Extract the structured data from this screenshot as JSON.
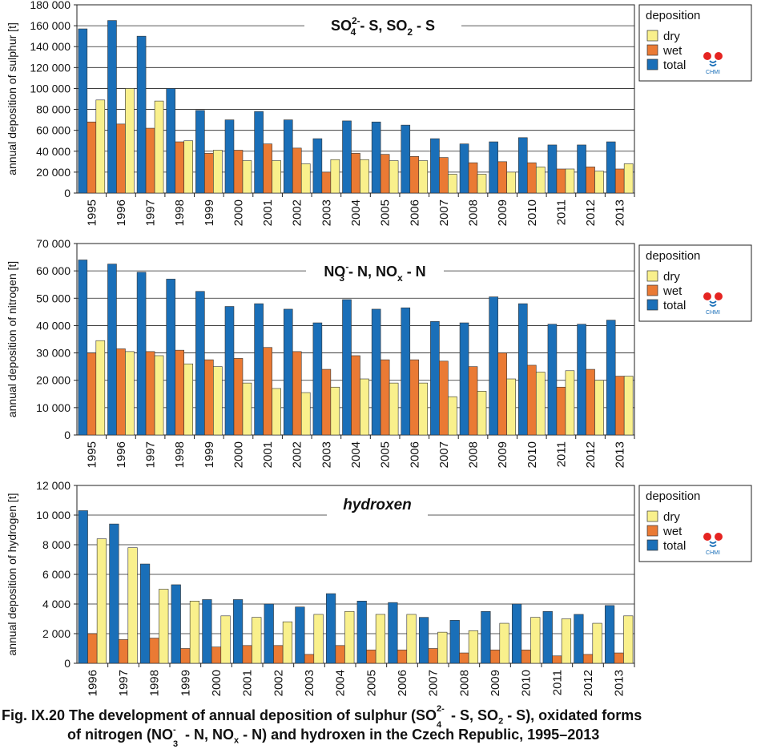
{
  "chart_data": [
    {
      "type": "bar",
      "title_main": "SO",
      "title_parts": [
        "SO",
        "4",
        "2-",
        " - S, SO",
        "2",
        " - S"
      ],
      "ylabel": "annual deposition of sulphur [t]",
      "ylim": [
        0,
        180000
      ],
      "yticks": [
        0,
        20000,
        40000,
        60000,
        80000,
        100000,
        120000,
        140000,
        160000,
        180000
      ],
      "ytick_labels": [
        "0",
        "20 000",
        "40 000",
        "60 000",
        "80 000",
        "100 000",
        "120 000",
        "140 000",
        "160 000",
        "180 000"
      ],
      "categories": [
        "1995",
        "1996",
        "1997",
        "1998",
        "1999",
        "2000",
        "2001",
        "2002",
        "2003",
        "2004",
        "2005",
        "2006",
        "2007",
        "2008",
        "2009",
        "2010",
        "2011",
        "2012",
        "2013"
      ],
      "series": [
        {
          "name": "total",
          "color": "#1a6fb8",
          "values": [
            157000,
            165000,
            150000,
            100000,
            79000,
            70000,
            78000,
            70000,
            52000,
            69000,
            68000,
            65000,
            52000,
            47000,
            49000,
            53000,
            46000,
            46000,
            49000
          ]
        },
        {
          "name": "wet",
          "color": "#ea7a34",
          "values": [
            68000,
            66000,
            62000,
            49000,
            38000,
            41000,
            47000,
            43000,
            20000,
            38000,
            37000,
            35000,
            34000,
            29000,
            30000,
            29000,
            23000,
            25000,
            23000
          ]
        },
        {
          "name": "dry",
          "color": "#f9f08c",
          "values": [
            89000,
            100000,
            88000,
            50000,
            41000,
            31000,
            31000,
            28000,
            32000,
            32000,
            31000,
            31000,
            18000,
            18000,
            20000,
            25000,
            23000,
            21000,
            28000
          ]
        }
      ],
      "legend": {
        "title": "deposition",
        "items": [
          "dry",
          "wet",
          "total"
        ],
        "position": "right"
      },
      "logo": "CHMI",
      "grid": true
    },
    {
      "type": "bar",
      "title_parts": [
        "NO",
        "3",
        "-",
        " - N, NO",
        "x",
        " - N"
      ],
      "ylabel": "annual deposition of nitrogen [t]",
      "ylim": [
        0,
        70000
      ],
      "yticks": [
        0,
        10000,
        20000,
        30000,
        40000,
        50000,
        60000,
        70000
      ],
      "ytick_labels": [
        "0",
        "10 000",
        "20 000",
        "30 000",
        "40 000",
        "50 000",
        "60 000",
        "70 000"
      ],
      "categories": [
        "1995",
        "1996",
        "1997",
        "1998",
        "1999",
        "2000",
        "2001",
        "2002",
        "2003",
        "2004",
        "2005",
        "2006",
        "2007",
        "2008",
        "2009",
        "2010",
        "2011",
        "2012",
        "2013"
      ],
      "series": [
        {
          "name": "total",
          "color": "#1a6fb8",
          "values": [
            64000,
            62500,
            59500,
            57000,
            52500,
            47000,
            48000,
            46000,
            41000,
            49500,
            46000,
            46500,
            41500,
            41000,
            50500,
            48000,
            40500,
            40500,
            42000
          ]
        },
        {
          "name": "wet",
          "color": "#ea7a34",
          "values": [
            30000,
            31500,
            30500,
            31000,
            27500,
            28000,
            32000,
            30500,
            24000,
            29000,
            27500,
            27500,
            27000,
            25000,
            30000,
            25500,
            17500,
            24000,
            21500
          ]
        },
        {
          "name": "dry",
          "color": "#f9f08c",
          "values": [
            34500,
            30500,
            29000,
            26000,
            25000,
            19000,
            17000,
            15500,
            17500,
            20500,
            19000,
            19000,
            14000,
            16000,
            20500,
            23000,
            23500,
            20000,
            21500
          ]
        }
      ],
      "legend": {
        "title": "deposition",
        "items": [
          "dry",
          "wet",
          "total"
        ],
        "position": "right"
      },
      "logo": "CHMI",
      "grid": true
    },
    {
      "type": "bar",
      "title": "hydroxen",
      "ylabel": "annual deposition of hydrogen [t]",
      "ylim": [
        0,
        12000
      ],
      "yticks": [
        0,
        2000,
        4000,
        6000,
        8000,
        10000,
        12000
      ],
      "ytick_labels": [
        "0",
        "2 000",
        "4 000",
        "6 000",
        "8 000",
        "10 000",
        "12 000"
      ],
      "categories": [
        "1996",
        "1997",
        "1998",
        "1999",
        "2000",
        "2001",
        "2002",
        "2003",
        "2004",
        "2005",
        "2006",
        "2007",
        "2008",
        "2009",
        "2010",
        "2011",
        "2012",
        "2013"
      ],
      "series": [
        {
          "name": "total",
          "color": "#1a6fb8",
          "values": [
            10300,
            9400,
            6700,
            5300,
            4300,
            4300,
            4000,
            3800,
            4700,
            4200,
            4100,
            3100,
            2900,
            3500,
            4000,
            3500,
            3300,
            3900
          ]
        },
        {
          "name": "wet",
          "color": "#ea7a34",
          "values": [
            2000,
            1600,
            1700,
            1000,
            1100,
            1200,
            1200,
            600,
            1200,
            900,
            900,
            1000,
            700,
            900,
            900,
            500,
            600,
            700
          ]
        },
        {
          "name": "dry",
          "color": "#f9f08c",
          "values": [
            8400,
            7800,
            5000,
            4200,
            3200,
            3100,
            2800,
            3300,
            3500,
            3300,
            3300,
            2100,
            2200,
            2700,
            3100,
            3000,
            2700,
            3200
          ]
        }
      ],
      "legend": {
        "title": "deposition",
        "items": [
          "dry",
          "wet",
          "total"
        ],
        "position": "right"
      },
      "logo": "CHMI",
      "grid": true
    }
  ],
  "caption": {
    "line1_parts": [
      "Fig. IX.20  The development of annual deposition of sulphur (SO",
      "4",
      "2-",
      " - S, SO",
      "2",
      " - S), oxidated forms"
    ],
    "line2_parts": [
      "of nitrogen (NO",
      "3",
      "-",
      " - N, NO",
      "x",
      " - N) and hydroxen in the Czech Republic, 1995–2013"
    ]
  }
}
